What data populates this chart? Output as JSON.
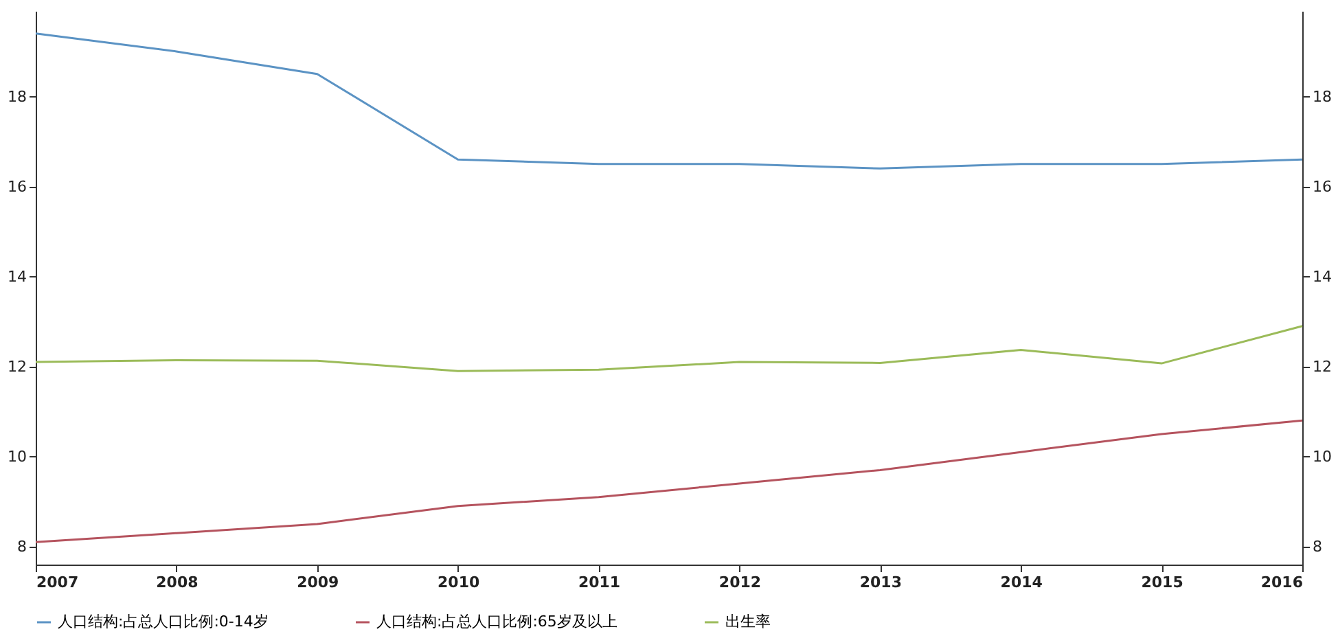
{
  "chart_data": {
    "type": "line",
    "x": [
      2007,
      2008,
      2009,
      2010,
      2011,
      2012,
      2013,
      2014,
      2015,
      2016
    ],
    "series": [
      {
        "name": "人口结构:占总人口比例:0-14岁",
        "color": "#5b93c4",
        "values": [
          19.4,
          19.0,
          18.5,
          16.6,
          16.5,
          16.5,
          16.4,
          16.5,
          16.5,
          16.6
        ]
      },
      {
        "name": "人口结构:占总人口比例:65岁及以上",
        "color": "#b5535e",
        "values": [
          8.1,
          8.3,
          8.5,
          8.9,
          9.1,
          9.4,
          9.7,
          10.1,
          10.5,
          10.8
        ]
      },
      {
        "name": "出生率",
        "color": "#9bbb59",
        "values": [
          12.1,
          12.14,
          12.13,
          11.9,
          11.93,
          12.1,
          12.08,
          12.37,
          12.07,
          12.9
        ]
      }
    ],
    "xlim": [
      2007,
      2016
    ],
    "xticks": [
      2007,
      2008,
      2009,
      2010,
      2011,
      2012,
      2013,
      2014,
      2015,
      2016
    ],
    "ylim": [
      7.6,
      19.9
    ],
    "yticks": [
      8,
      10,
      12,
      14,
      16,
      18
    ],
    "y2lim": [
      7.6,
      19.9
    ],
    "y2ticks": [
      8,
      10,
      12,
      14,
      16,
      18
    ],
    "grid": false,
    "legend": "bottom"
  }
}
